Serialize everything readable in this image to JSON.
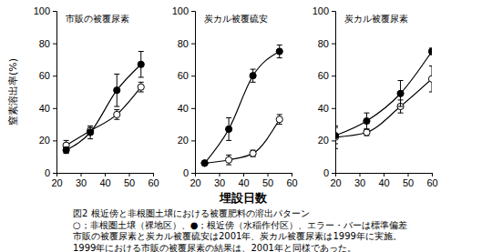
{
  "chart_data": [
    {
      "type": "line",
      "title": "市販の被覆尿素",
      "y_label": "窒素溶出率(%)",
      "x": [
        24,
        34,
        45,
        55
      ],
      "series": [
        {
          "color": "#000000",
          "marker": "open-circle",
          "values": [
            17,
            26,
            36,
            53
          ],
          "errors": [
            3,
            2,
            3,
            3
          ]
        },
        {
          "color": "#000000",
          "marker": "filled-circle",
          "values": [
            14,
            25,
            51,
            67
          ],
          "errors": [
            2,
            4,
            10,
            8
          ]
        }
      ],
      "xlim": [
        20,
        60
      ],
      "xticks": [
        20,
        30,
        40,
        50,
        60
      ],
      "ylim": [
        0,
        100
      ],
      "yticks": [
        0,
        20,
        40,
        60,
        80,
        100
      ]
    },
    {
      "type": "line",
      "title": "炭カル被覆硫安",
      "x_label": "埋設日数",
      "x": [
        24,
        34,
        44,
        55
      ],
      "series": [
        {
          "color": "#000000",
          "marker": "open-circle",
          "values": [
            6,
            8,
            12,
            33
          ],
          "errors": [
            1,
            3,
            2,
            3
          ]
        },
        {
          "color": "#000000",
          "marker": "filled-circle",
          "values": [
            6,
            27,
            60,
            75
          ],
          "errors": [
            1,
            7,
            4,
            4
          ]
        }
      ],
      "xlim": [
        20,
        60
      ],
      "xticks": [
        20,
        30,
        40,
        50,
        60
      ],
      "ylim": [
        0,
        100
      ],
      "yticks": [
        0,
        20,
        40,
        60,
        80,
        100
      ]
    },
    {
      "type": "line",
      "title": "炭カル被覆尿素",
      "x": [
        20,
        33,
        47,
        60
      ],
      "series": [
        {
          "color": "#000000",
          "marker": "open-circle",
          "values": [
            22,
            25,
            41,
            58
          ],
          "errors": [
            7,
            2,
            4,
            8
          ]
        },
        {
          "color": "#000000",
          "marker": "filled-circle",
          "values": [
            23,
            32,
            49,
            75
          ],
          "errors": [
            5,
            5,
            8,
            2
          ]
        }
      ],
      "xlim": [
        20,
        60
      ],
      "xticks": [
        20,
        30,
        40,
        50,
        60
      ],
      "ylim": [
        0,
        100
      ],
      "yticks": [
        0,
        20,
        40,
        60,
        80,
        100
      ]
    }
  ],
  "caption": [
    "図2 根近傍と非根圏土壌における被覆肥料の溶出パターン",
    "○；非根圏土壌（裸地区）、●；根近傍（水稲作付区）、エラー・バーは標準偏差",
    "市販の被覆尿素と炭カル被覆硫安は2001年、炭カル被覆尿素は1999年に実施。",
    "1999年における市販の被覆尿素の結果は、2001年と同様であった。"
  ]
}
